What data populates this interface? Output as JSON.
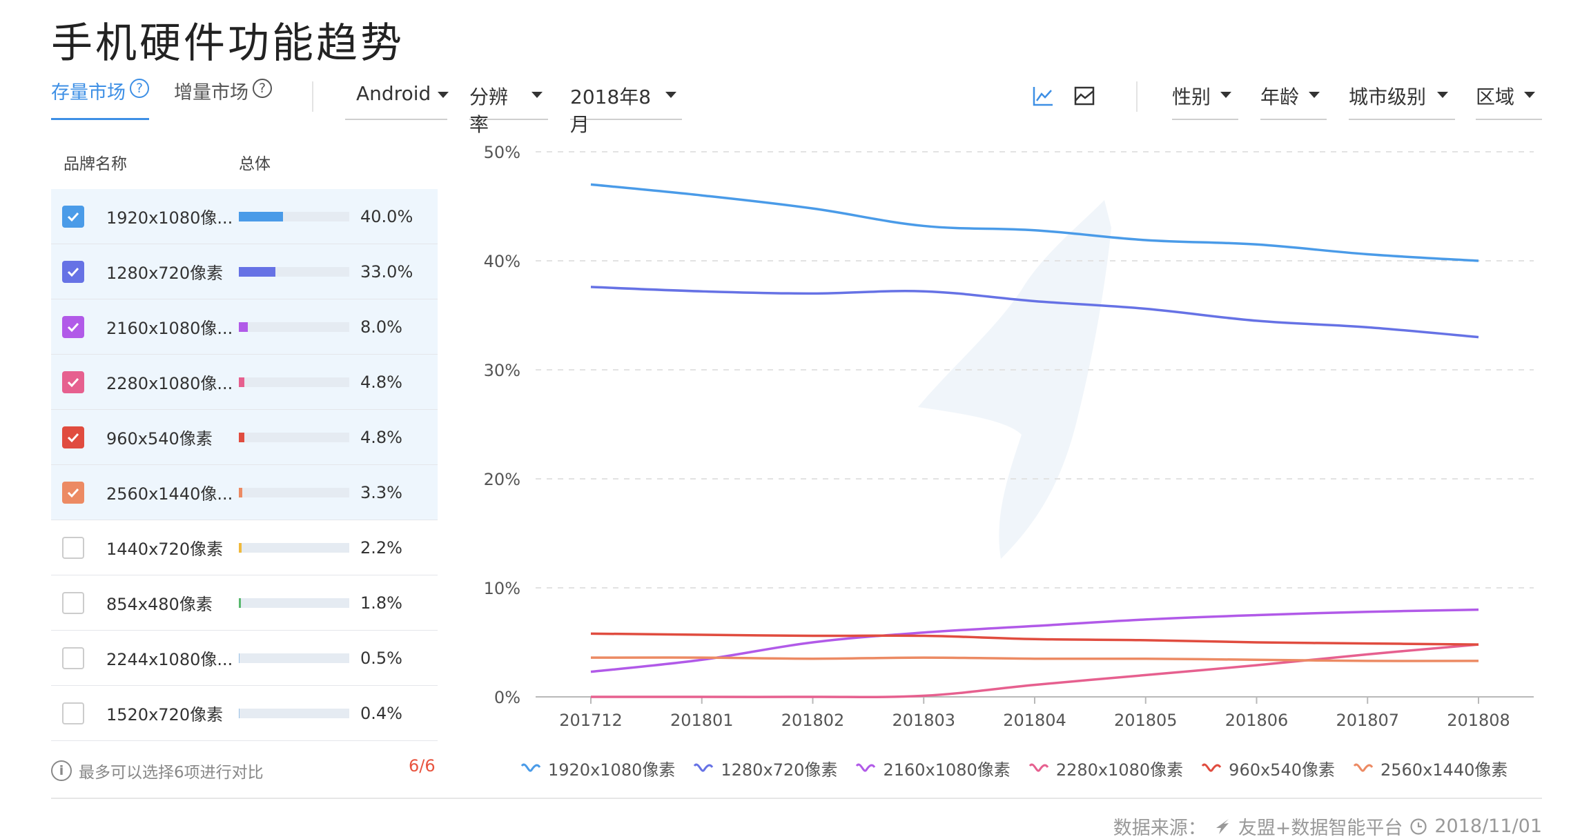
{
  "page": {
    "title": "手机硬件功能趋势"
  },
  "tabs": [
    {
      "label": "存量市场",
      "active": true
    },
    {
      "label": "增量市场",
      "active": false
    }
  ],
  "filters": {
    "os": "Android",
    "dimension": "分辨率",
    "month": "2018年8月",
    "gender": "性别",
    "age": "年龄",
    "city": "城市级别",
    "region": "区域"
  },
  "list": {
    "header_name": "品牌名称",
    "header_total": "总体",
    "items": [
      {
        "label": "1920x1080像...",
        "value": "40.0%",
        "pct": 40.0,
        "checked": true,
        "color": "#4a9be8"
      },
      {
        "label": "1280x720像素",
        "value": "33.0%",
        "pct": 33.0,
        "checked": true,
        "color": "#6672e5"
      },
      {
        "label": "2160x1080像...",
        "value": "8.0%",
        "pct": 8.0,
        "checked": true,
        "color": "#b15ae8"
      },
      {
        "label": "2280x1080像...",
        "value": "4.8%",
        "pct": 4.8,
        "checked": true,
        "color": "#e6608f"
      },
      {
        "label": "960x540像素",
        "value": "4.8%",
        "pct": 4.8,
        "checked": true,
        "color": "#e04c3f"
      },
      {
        "label": "2560x1440像...",
        "value": "3.3%",
        "pct": 3.3,
        "checked": true,
        "color": "#ec8a63"
      },
      {
        "label": "1440x720像素",
        "value": "2.2%",
        "pct": 2.2,
        "checked": false,
        "color": "#f0b93b"
      },
      {
        "label": "854x480像素",
        "value": "1.8%",
        "pct": 1.8,
        "checked": false,
        "color": "#58b86d"
      },
      {
        "label": "2244x1080像...",
        "value": "0.5%",
        "pct": 0.5,
        "checked": false,
        "color": "#9bc2e6"
      },
      {
        "label": "1520x720像素",
        "value": "0.4%",
        "pct": 0.4,
        "checked": false,
        "color": "#9bc2e6"
      }
    ]
  },
  "footer": {
    "note": "最多可以选择6项进行对比",
    "count": "6/6",
    "source_label": "数据来源：",
    "source_name": "友盟+数据智能平台",
    "date": "2018/11/01"
  },
  "chart_data": {
    "type": "line",
    "x": [
      "201712",
      "201801",
      "201802",
      "201803",
      "201804",
      "201805",
      "201806",
      "201807",
      "201808"
    ],
    "ylim": [
      0,
      50
    ],
    "yticks": [
      "0%",
      "10%",
      "20%",
      "30%",
      "40%",
      "50%"
    ],
    "grid": true,
    "legend_position": "bottom",
    "series": [
      {
        "name": "1920x1080像素",
        "color": "#4a9be8",
        "values": [
          47.0,
          46.0,
          44.8,
          43.2,
          42.8,
          41.9,
          41.5,
          40.6,
          40.0
        ]
      },
      {
        "name": "1280x720像素",
        "color": "#6672e5",
        "values": [
          37.6,
          37.2,
          37.0,
          37.2,
          36.3,
          35.6,
          34.5,
          33.9,
          33.0
        ]
      },
      {
        "name": "2160x1080像素",
        "color": "#b15ae8",
        "values": [
          2.3,
          3.4,
          5.0,
          5.9,
          6.5,
          7.1,
          7.5,
          7.8,
          8.0
        ]
      },
      {
        "name": "2280x1080像素",
        "color": "#e6608f",
        "values": [
          0.0,
          0.0,
          0.0,
          0.1,
          1.1,
          2.0,
          2.9,
          3.9,
          4.8
        ]
      },
      {
        "name": "960x540像素",
        "color": "#e04c3f",
        "values": [
          5.8,
          5.7,
          5.6,
          5.6,
          5.3,
          5.2,
          5.0,
          4.9,
          4.8
        ]
      },
      {
        "name": "2560x1440像素",
        "color": "#ec8a63",
        "values": [
          3.6,
          3.6,
          3.5,
          3.6,
          3.5,
          3.5,
          3.4,
          3.3,
          3.3
        ]
      }
    ]
  }
}
